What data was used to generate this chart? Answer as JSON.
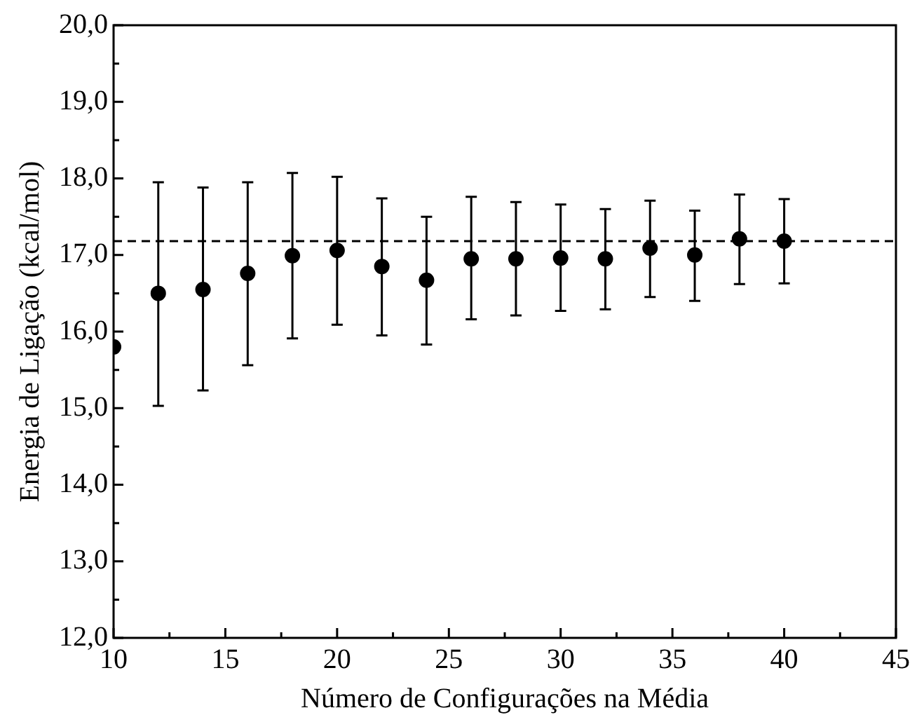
{
  "chart_data": {
    "type": "scatter",
    "xlabel": "Número de Configurações na Média",
    "ylabel": "Energia de Ligação (kcal/mol)",
    "x": [
      10,
      12,
      14,
      16,
      18,
      20,
      22,
      24,
      26,
      28,
      30,
      32,
      34,
      36,
      38,
      40
    ],
    "series": [
      {
        "color": "#000000",
        "values": [
          15.8,
          16.5,
          16.55,
          16.76,
          16.99,
          17.06,
          16.85,
          16.67,
          16.95,
          16.95,
          16.96,
          16.95,
          17.09,
          17.0,
          17.21,
          17.18
        ],
        "errors": [
          null,
          [
            15.03,
            17.95
          ],
          [
            15.23,
            17.88
          ],
          [
            15.56,
            17.95
          ],
          [
            15.91,
            18.07
          ],
          [
            16.09,
            18.02
          ],
          [
            15.95,
            17.74
          ],
          [
            15.83,
            17.5
          ],
          [
            16.16,
            17.76
          ],
          [
            16.21,
            17.69
          ],
          [
            16.27,
            17.66
          ],
          [
            16.29,
            17.6
          ],
          [
            16.45,
            17.71
          ],
          [
            16.4,
            17.58
          ],
          [
            16.62,
            17.79
          ],
          [
            16.63,
            17.73
          ]
        ]
      }
    ],
    "xlim": [
      10,
      45
    ],
    "xticks": [
      10,
      {
        "value": 12.5,
        "label": null
      },
      15,
      {
        "value": 17.5,
        "label": null
      },
      20,
      {
        "value": 22.5,
        "label": null
      },
      25,
      {
        "value": 27.5,
        "label": null
      },
      30,
      {
        "value": 32.5,
        "label": null
      },
      35,
      {
        "value": 37.5,
        "label": null
      },
      40,
      {
        "value": 42.5,
        "label": null
      },
      45
    ],
    "ylim": [
      12,
      20
    ],
    "yticks": [
      {
        "value": 12,
        "label": "12,0"
      },
      {
        "value": 12.5,
        "label": null
      },
      {
        "value": 13,
        "label": "13,0"
      },
      {
        "value": 13.5,
        "label": null
      },
      {
        "value": 14,
        "label": "14,0"
      },
      {
        "value": 14.5,
        "label": null
      },
      {
        "value": 15,
        "label": "15,0"
      },
      {
        "value": 15.5,
        "label": null
      },
      {
        "value": 16,
        "label": "16,0"
      },
      {
        "value": 16.5,
        "label": null
      },
      {
        "value": 17,
        "label": "17,0"
      },
      {
        "value": 17.5,
        "label": null
      },
      {
        "value": 18,
        "label": "18,0"
      },
      {
        "value": 18.5,
        "label": null
      },
      {
        "value": 19,
        "label": "19,0"
      },
      {
        "value": 19.5,
        "label": null
      },
      {
        "value": 20,
        "label": "20,0"
      }
    ],
    "ref_lines": [
      {
        "axis": "y",
        "value": 17.18,
        "line_style": "dashed",
        "color": "#000000"
      }
    ],
    "marker": "circle",
    "grid": false,
    "legend": false
  }
}
